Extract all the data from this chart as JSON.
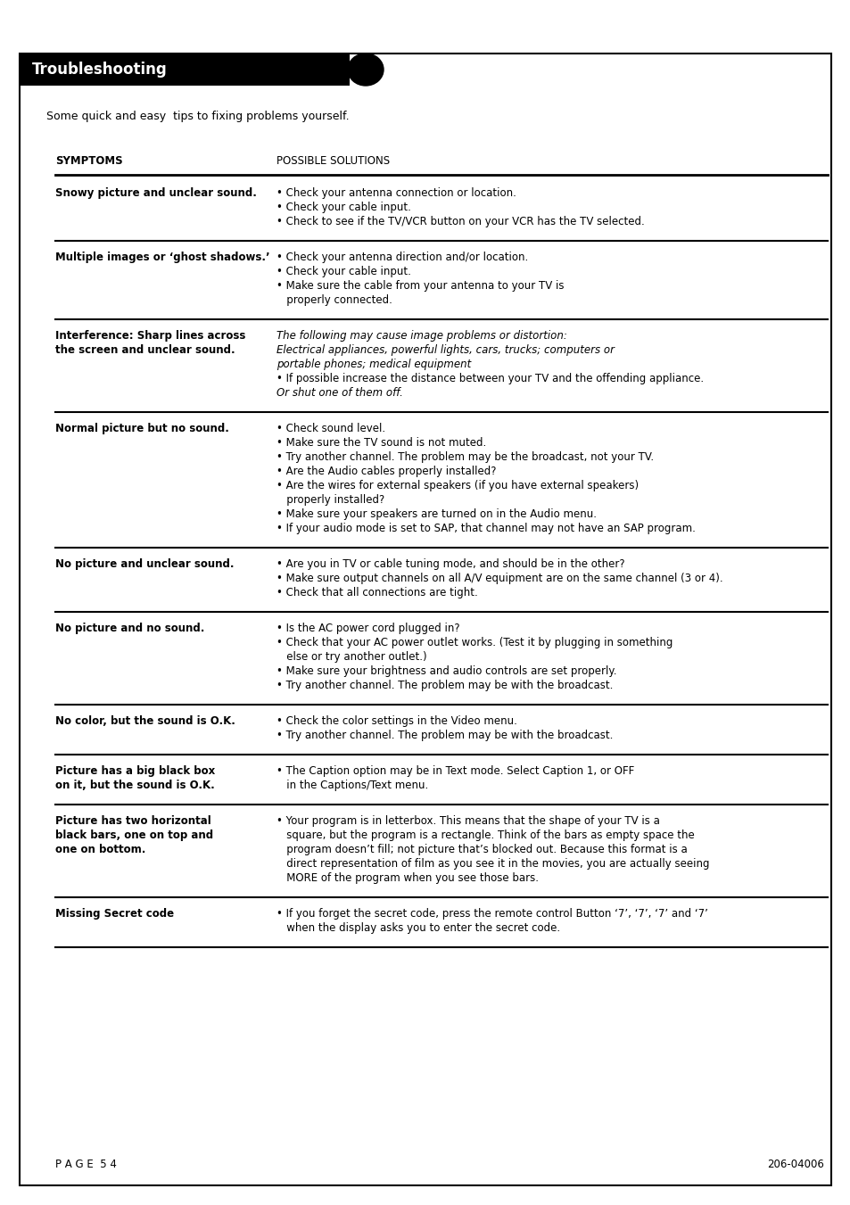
{
  "title": "Troubleshooting",
  "subtitle": "Some quick and easy  tips to fixing problems yourself.",
  "col1_header": "SYMPTOMS",
  "col2_header": "POSSIBLE SOLUTIONS",
  "page_number": "P A G E  5 4",
  "doc_number": "206-04006",
  "rows": [
    {
      "symptom": "Snowy picture and unclear sound.",
      "solutions": [
        "Check your antenna connection or location.",
        "Check your cable input.",
        "Check to see if the TV/VCR button on your VCR has the TV selected."
      ],
      "italic": false
    },
    {
      "symptom": "Multiple images or ‘ghost shadows.’",
      "solutions": [
        "Check your antenna direction and/or location.",
        "Check your cable input.",
        "Make sure the cable from your antenna to your TV is\n   properly connected."
      ],
      "italic": false
    },
    {
      "symptom": "Interference: Sharp lines across\nthe screen and unclear sound.",
      "solutions_text": "The following may cause image problems or distortion:\nElectrical appliances, powerful lights, cars, trucks; computers or\nportable phones; medical equipment\n• If possible increase the distance between your TV and the offending appliance.\nOr shut one of them off.",
      "italic": true
    },
    {
      "symptom": "Normal picture but no sound.",
      "solutions": [
        "Check sound level.",
        "Make sure the TV sound is not muted.",
        "Try another channel. The problem may be the broadcast, not your TV.",
        "Are the Audio cables properly installed?",
        "Are the wires for external speakers (if you have external speakers)\n   properly installed?",
        "Make sure your speakers are turned on in the Audio menu.",
        "If your audio mode is set to SAP, that channel may not have an SAP program."
      ],
      "italic": false
    },
    {
      "symptom": "No picture and unclear sound.",
      "solutions": [
        "Are you in TV or cable tuning mode, and should be in the other?",
        "Make sure output channels on all A/V equipment are on the same channel (3 or 4).",
        "Check that all connections are tight."
      ],
      "italic": false
    },
    {
      "symptom": "No picture and no sound.",
      "solutions": [
        "Is the AC power cord plugged in?",
        "Check that your AC power outlet works. (Test it by plugging in something\n   else or try another outlet.)",
        "Make sure your brightness and audio controls are set properly.",
        "Try another channel. The problem may be with the broadcast."
      ],
      "italic": false
    },
    {
      "symptom": "No color, but the sound is O.K.",
      "solutions": [
        "Check the color settings in the Video menu.",
        "Try another channel. The problem may be with the broadcast."
      ],
      "italic": false
    },
    {
      "symptom": "Picture has a big black box\non it, but the sound is O.K.",
      "solutions": [
        "The Caption option may be in Text mode. Select Caption 1, or OFF\n   in the Captions/Text menu."
      ],
      "italic": false
    },
    {
      "symptom": "Picture has two horizontal\nblack bars, one on top and\none on bottom.",
      "solutions": [
        "Your program is in letterbox. This means that the shape of your TV is a\n   square, but the program is a rectangle. Think of the bars as empty space the\n   program doesn’t fill; not picture that’s blocked out. Because this format is a\n   direct representation of film as you see it in the movies, you are actually seeing\n   MORE of the program when you see those bars."
      ],
      "italic": false
    },
    {
      "symptom": "Missing Secret code",
      "solutions": [
        "If you forget the secret code, press the remote control Button ‘7’, ‘7’, ‘7’ and ‘7’\n   when the display asks you to enter the secret code."
      ],
      "italic": false
    }
  ],
  "bg_color": "#ffffff",
  "header_bg": "#000000",
  "header_text_color": "#ffffff",
  "border_color": "#000000",
  "text_color": "#000000",
  "figw": 9.54,
  "figh": 13.51,
  "dpi": 100
}
